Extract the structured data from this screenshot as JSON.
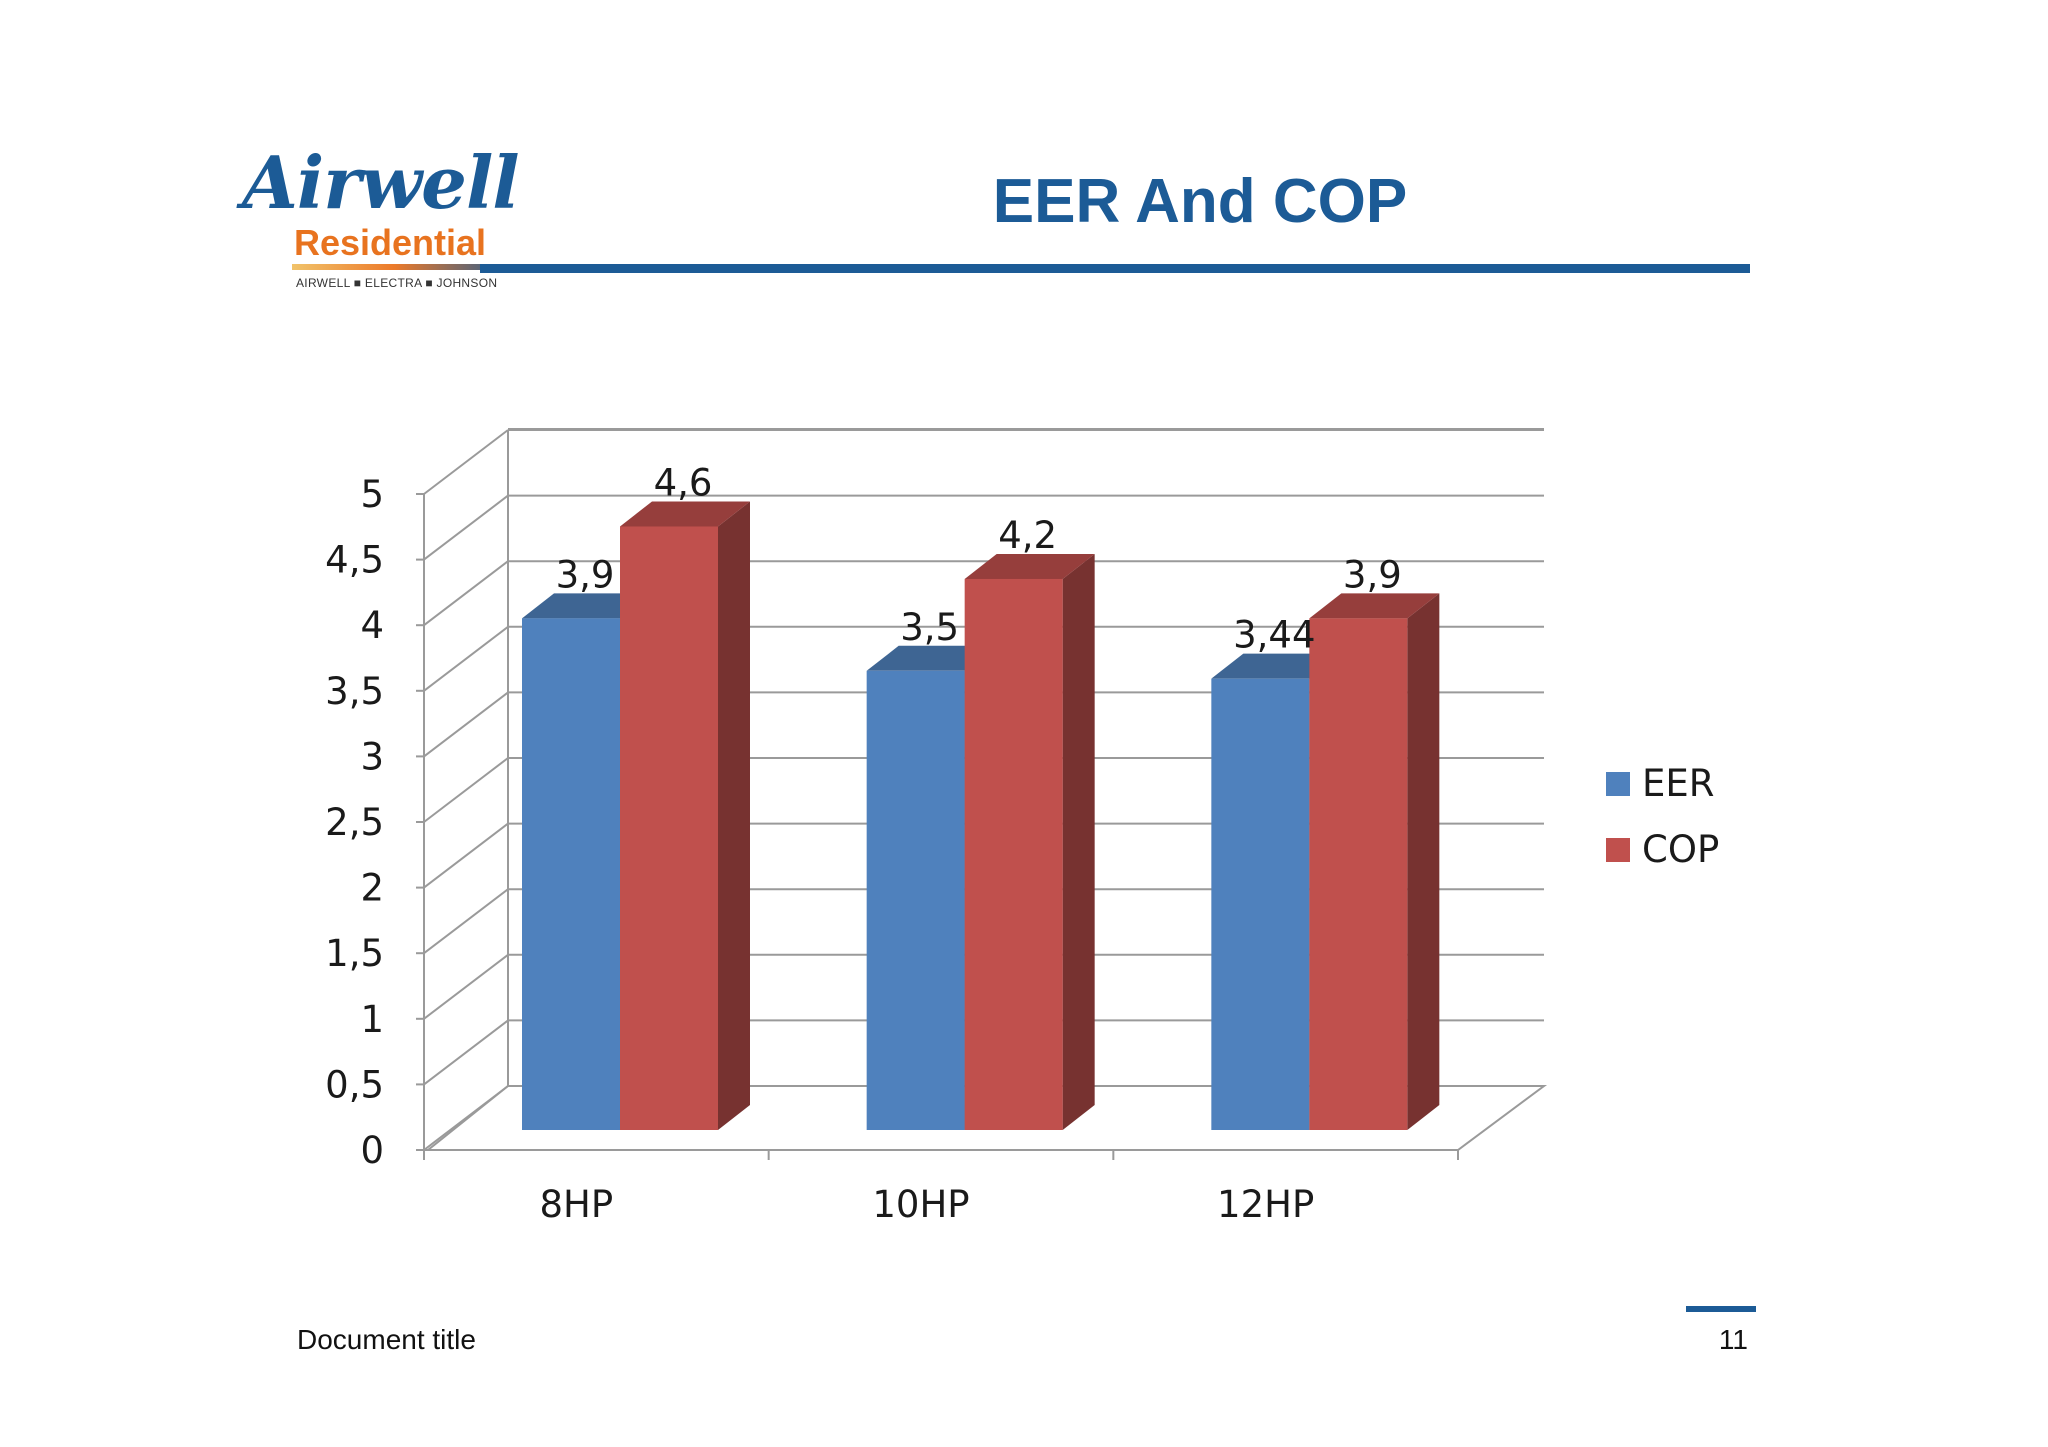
{
  "slide": {
    "title": "EER And COP",
    "footer_title": "Document title",
    "page_number": "11"
  },
  "logo": {
    "brand": "Airwell",
    "subtitle": "Residential",
    "brands_line": "AIRWELL ■ ELECTRA ■ JOHNSON",
    "brand_color": "#1c5b96",
    "subtitle_color": "#e8731f"
  },
  "chart_data": {
    "type": "bar",
    "title": "",
    "xlabel": "",
    "ylabel": "",
    "categories": [
      "8HP",
      "10HP",
      "12HP"
    ],
    "series": [
      {
        "name": "EER",
        "values": [
          3.9,
          3.5,
          3.44
        ],
        "labels": [
          "3,9",
          "3,5",
          "3,44"
        ],
        "color": "#4f81bd"
      },
      {
        "name": "COP",
        "values": [
          4.6,
          4.2,
          3.9
        ],
        "labels": [
          "4,6",
          "4,2",
          "3,9"
        ],
        "color": "#c0504d"
      }
    ],
    "ylim": [
      0,
      5
    ],
    "yticks": [
      0,
      0.5,
      1,
      1.5,
      2,
      2.5,
      3,
      3.5,
      4,
      4.5,
      5
    ],
    "ytick_labels": [
      "0",
      "0,5",
      "1",
      "1,5",
      "2",
      "2,5",
      "3",
      "3,5",
      "4",
      "4,5",
      "5"
    ],
    "grid": true,
    "style": "3d-clustered-column",
    "legend_position": "right"
  }
}
